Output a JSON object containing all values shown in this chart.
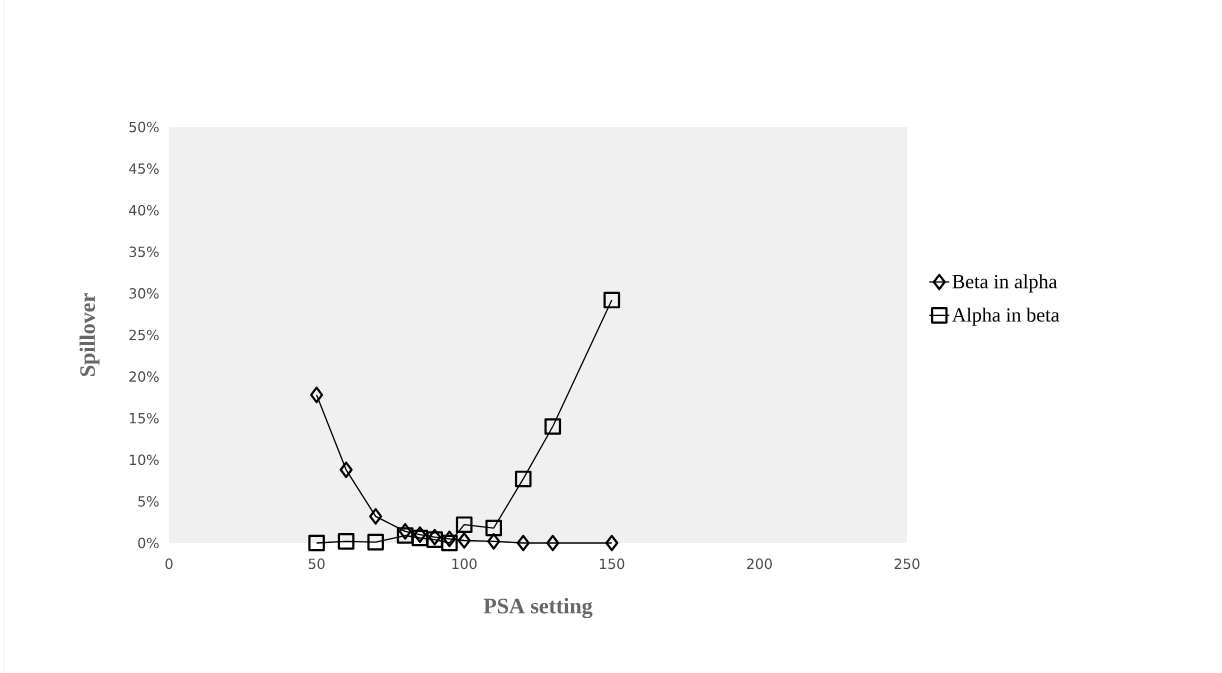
{
  "chart_data": {
    "type": "line",
    "xlabel": "PSA setting",
    "ylabel": "Spillover",
    "xlim": [
      0,
      250
    ],
    "xticks": [
      0,
      50,
      100,
      150,
      200,
      250
    ],
    "ylim": [
      0,
      50
    ],
    "yticks": [
      {
        "value": 0,
        "label": "0%"
      },
      {
        "value": 5,
        "label": "5%"
      },
      {
        "value": 10,
        "label": "10%"
      },
      {
        "value": 15,
        "label": "15%"
      },
      {
        "value": 20,
        "label": "20%"
      },
      {
        "value": 25,
        "label": "25%"
      },
      {
        "value": 30,
        "label": "30%"
      },
      {
        "value": 35,
        "label": "35%"
      },
      {
        "value": 40,
        "label": "40%"
      },
      {
        "value": 45,
        "label": "45%"
      },
      {
        "value": 50,
        "label": "50%"
      }
    ],
    "legend": "right",
    "line_style": "solid",
    "series": [
      {
        "name": "Beta in alpha",
        "color": "#000000",
        "marker": "diamond",
        "x": [
          50,
          60,
          70,
          80,
          85,
          90,
          95,
          100,
          110,
          120,
          130,
          150
        ],
        "values": [
          17.8,
          8.8,
          3.2,
          1.4,
          1.0,
          0.7,
          0.5,
          0.3,
          0.2,
          0,
          0,
          0
        ]
      },
      {
        "name": "Alpha in beta",
        "color": "#000000",
        "marker": "square",
        "x": [
          50,
          60,
          70,
          80,
          85,
          90,
          95,
          100,
          110,
          120,
          130,
          150
        ],
        "values": [
          0,
          0.2,
          0.1,
          0.9,
          0.6,
          0.4,
          0,
          2.2,
          1.8,
          7.7,
          14,
          29.2
        ]
      }
    ]
  }
}
